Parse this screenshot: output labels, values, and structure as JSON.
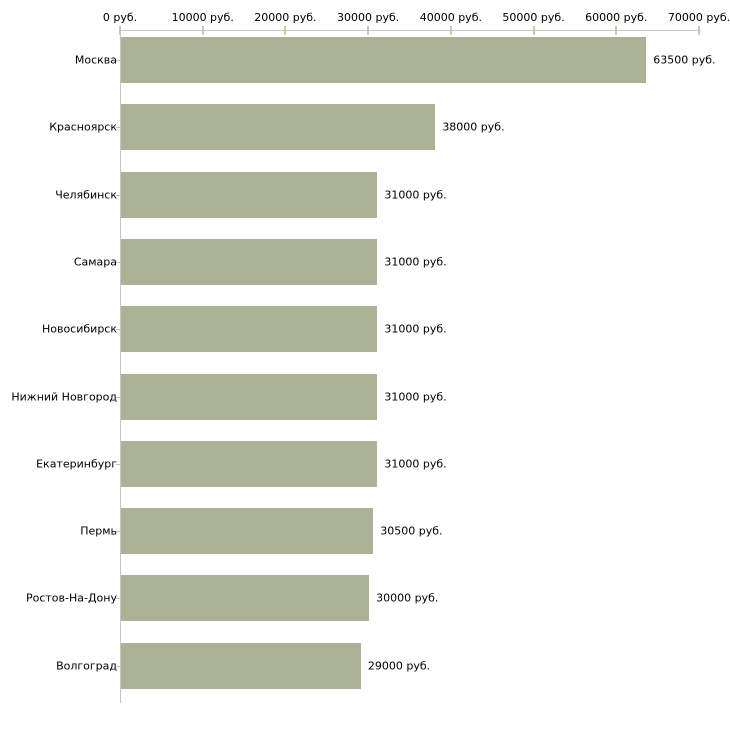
{
  "chart_data": {
    "type": "bar",
    "orientation": "horizontal",
    "title": "",
    "categories": [
      "Москва",
      "Красноярск",
      "Челябинск",
      "Самара",
      "Новосибирск",
      "Нижний Новгород",
      "Екатеринбург",
      "Пермь",
      "Ростов-На-Дону",
      "Волгоград"
    ],
    "values": [
      63500,
      38000,
      31000,
      31000,
      31000,
      31000,
      31000,
      30500,
      30000,
      29000
    ],
    "value_labels": [
      "63500 руб.",
      "38000 руб.",
      "31000 руб.",
      "31000 руб.",
      "31000 руб.",
      "31000 руб.",
      "31000 руб.",
      "30500 руб.",
      "30000 руб.",
      "29000 руб."
    ],
    "x_tick_labels": [
      "0 руб.",
      "10000 руб.",
      "20000 руб.",
      "30000 руб.",
      "40000 руб.",
      "50000 руб.",
      "60000 руб.",
      "70000 руб."
    ],
    "x_tick_values": [
      0,
      10000,
      20000,
      30000,
      40000,
      50000,
      60000,
      70000
    ],
    "xlim": [
      0,
      70000
    ],
    "grid": false,
    "legend": null,
    "colors": {
      "bar": "#acb296",
      "axis_line": "#c6c6c6",
      "x_tick_mark": "#c9caa2",
      "y_tick_mark": "#c0c0c0",
      "text": "#000000",
      "background": "#ffffff"
    }
  }
}
